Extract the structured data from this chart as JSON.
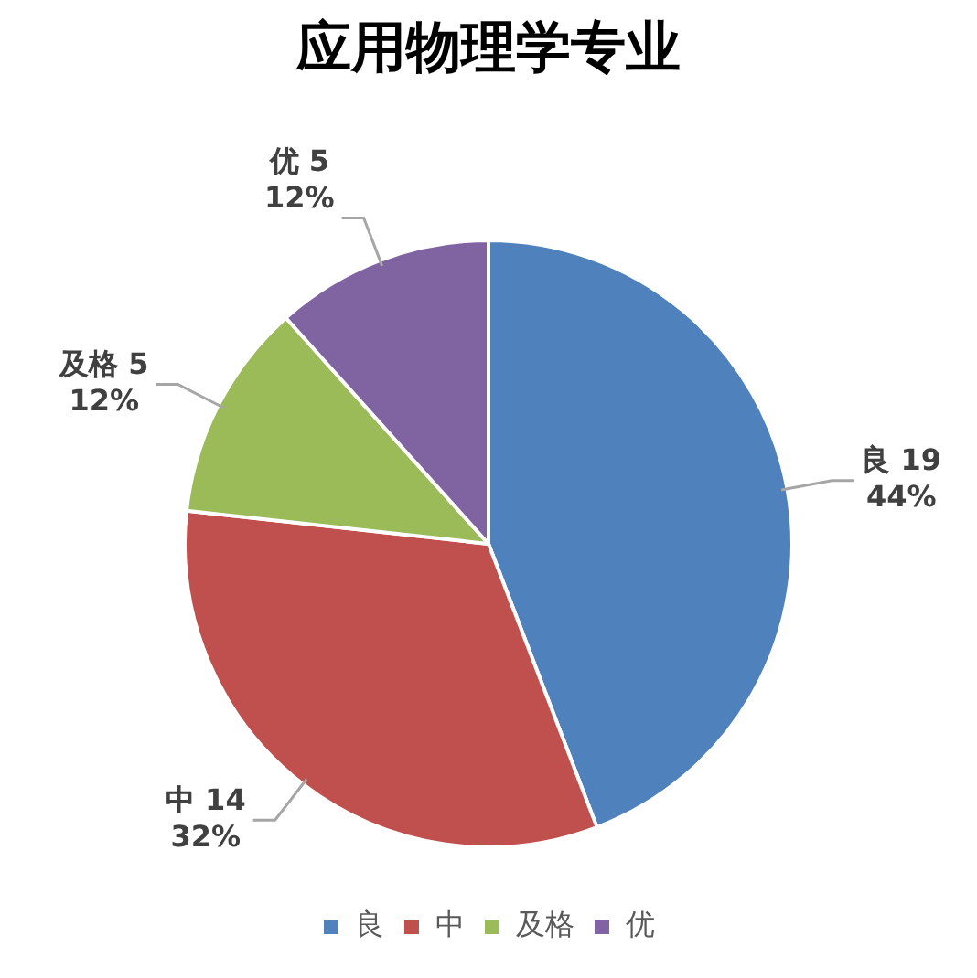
{
  "chart_data": {
    "type": "pie",
    "title": "应用物理学专业",
    "categories": [
      "良",
      "中",
      "及格",
      "优"
    ],
    "values": [
      19,
      14,
      5,
      5
    ],
    "colors": [
      "#4f81bd",
      "#c0504d",
      "#9bbb59",
      "#8064a2"
    ],
    "value_labels": [
      "良 19\n44%",
      "中 14\n32%",
      "及格 5\n12%",
      "优 5\n12%"
    ],
    "legend": "bottom"
  }
}
